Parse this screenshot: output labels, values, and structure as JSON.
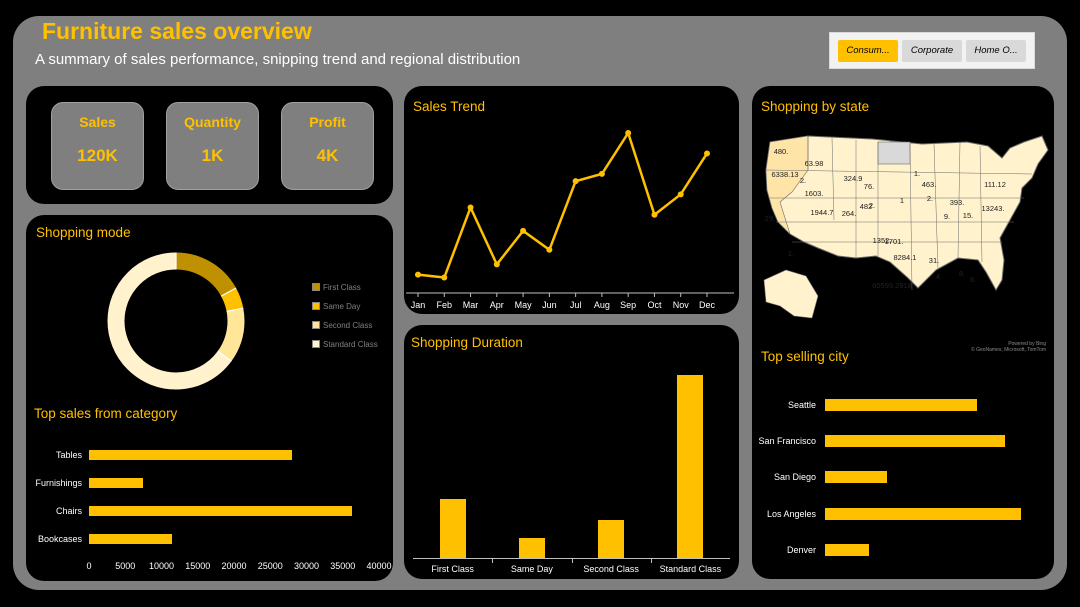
{
  "header": {
    "title": "Furniture sales overview",
    "subtitle": "A summary of sales performance, snipping trend and regional distribution"
  },
  "slicer": {
    "options": [
      {
        "label": "Consum...",
        "selected": true
      },
      {
        "label": "Corporate",
        "selected": false
      },
      {
        "label": "Home O...",
        "selected": false
      }
    ]
  },
  "kpis": [
    {
      "label": "Sales",
      "value": "120K"
    },
    {
      "label": "Quantity",
      "value": "1K"
    },
    {
      "label": "Profit",
      "value": "4K"
    }
  ],
  "colors": {
    "accent": "#ffc000",
    "panel": "#000000",
    "background": "#7f7f7f"
  },
  "panels": {
    "sales_trend": "Sales Trend",
    "shopping_by_state": "Shopping by state",
    "shopping_mode": "Shopping mode",
    "shopping_duration": "Shopping Duration",
    "top_sales_category": "Top sales from category",
    "top_selling_city": "Top selling city"
  },
  "map": {
    "labels": [
      "480.",
      "63.98",
      "6338.13",
      "2.",
      "1603.",
      "324.9",
      "76.",
      "1.",
      "463.",
      "482",
      "1944.7",
      "264.",
      "2.",
      "1",
      "2.",
      "393.",
      "9.",
      "15.",
      "13243.",
      "111.12",
      "29.",
      "1.",
      "1352.",
      "1701.",
      "8284.1",
      "31.",
      "4.",
      "6.",
      "8.",
      "60593.2918"
    ],
    "credit1": "Powered by Bing",
    "credit2": "© GeoNames, Microsoft, TomTom"
  },
  "chart_data": [
    {
      "type": "line",
      "title": "Sales Trend",
      "categories": [
        "Jan",
        "Feb",
        "Mar",
        "Apr",
        "May",
        "Jun",
        "Jul",
        "Aug",
        "Sep",
        "Oct",
        "Nov",
        "Dec"
      ],
      "values": [
        3,
        1,
        49,
        10,
        33,
        20,
        67,
        72,
        100,
        44,
        58,
        86
      ]
    },
    {
      "type": "pie",
      "title": "Shopping mode",
      "categories": [
        "First Class",
        "Same Day",
        "Second Class",
        "Standard Class"
      ],
      "values": [
        17,
        5,
        13,
        65
      ],
      "colors": [
        "#bf9000",
        "#ffc000",
        "#ffe699",
        "#fff2cc"
      ],
      "legend": "right"
    },
    {
      "type": "bar",
      "title": "Top sales from category",
      "orientation": "horizontal",
      "categories": [
        "Tables",
        "Furnishings",
        "Chairs",
        "Bookcases"
      ],
      "values": [
        28000,
        7500,
        36300,
        11500
      ],
      "xticks": [
        "0",
        "5000",
        "10000",
        "15000",
        "20000",
        "25000",
        "30000",
        "35000",
        "40000"
      ],
      "xlim": [
        0,
        40000
      ]
    },
    {
      "type": "bar",
      "title": "Shopping Duration",
      "categories": [
        "First Class",
        "Same Day",
        "Second Class",
        "Standard Class"
      ],
      "values": [
        32,
        11,
        21,
        100
      ]
    },
    {
      "type": "bar",
      "title": "Top selling city",
      "orientation": "horizontal",
      "categories": [
        "Seattle",
        "San Francisco",
        "San Diego",
        "Los Angeles",
        "Denver"
      ],
      "values": [
        76,
        90,
        31,
        98,
        22
      ]
    }
  ]
}
